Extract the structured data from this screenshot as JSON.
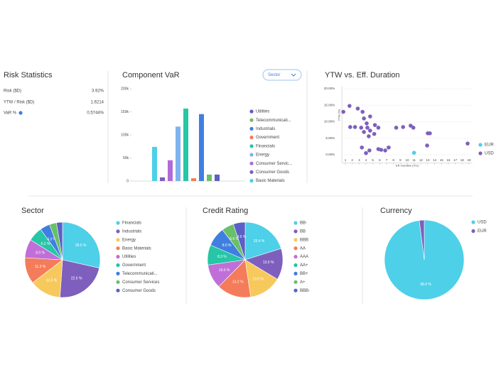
{
  "risk_statistics": {
    "title": "Risk Statistics",
    "rows": [
      {
        "label": "Risk ($D)",
        "value": "3.92%"
      },
      {
        "label": "YTW / Risk ($D)",
        "value": "1.6214"
      },
      {
        "label": "VaR %",
        "value": "0.5744%"
      }
    ]
  },
  "chart_data": [
    {
      "type": "bar",
      "title": "Component VaR",
      "dropdown": "Sector",
      "categories": [
        "Basic Materials",
        "Consumer Goods",
        "Consumer Servic...",
        "Energy",
        "Financials",
        "Government",
        "Industrials",
        "Telecommunicati...",
        "Utilities"
      ],
      "values": [
        74000,
        8000,
        45000,
        118000,
        157000,
        6000,
        145000,
        14000,
        14000
      ],
      "colors": [
        "#4dd0e8",
        "#7e5fbd",
        "#b26ad8",
        "#7fb3f0",
        "#26c6a6",
        "#f47c5a",
        "#3f7fe0",
        "#6abf69",
        "#5b5fc7"
      ],
      "ylim": [
        0,
        200000
      ],
      "yticks": [
        0,
        {
          "value": 50000,
          "label": "50k"
        },
        {
          "value": 100000,
          "label": "100k"
        },
        {
          "value": 150000,
          "label": "150k"
        },
        {
          "value": 200000,
          "label": "200k"
        }
      ]
    },
    {
      "type": "scatter",
      "title": "YTW vs. Eff. Duration",
      "x_label": "Eff. Duration (Yrs)",
      "y_label": "YTW (%)",
      "xlim": [
        0.5,
        19.5
      ],
      "xticks": [
        1,
        2,
        3,
        4,
        5,
        6,
        7,
        8,
        9,
        10,
        11,
        12,
        13,
        14,
        15,
        16,
        17,
        18,
        19
      ],
      "ylim": [
        -2.5,
        20
      ],
      "yticks": [
        {
          "value": 0,
          "label": "0.00%"
        },
        {
          "value": 5,
          "label": "5.00%"
        },
        {
          "value": 10,
          "label": "10.00%"
        },
        {
          "value": 15,
          "label": "15.00%"
        },
        {
          "value": 20,
          "label": "20.00%"
        }
      ],
      "series": [
        {
          "name": "EUR",
          "color": "#4dd0e8",
          "x": [
            11
          ],
          "values": [
            0.6
          ]
        },
        {
          "name": "USD",
          "color": "#7e5fbd",
          "x": [
            0.7,
            1.6,
            1.7,
            2.4,
            2.8,
            3.5,
            3.7,
            3.3,
            3.7,
            4.1,
            4.2,
            4.4,
            4.6,
            5.3,
            4.6,
            5.2,
            5.8,
            3.4,
            4.0,
            4.5,
            5.8,
            6.2,
            6.8,
            7.3,
            8.4,
            9.4,
            10.5,
            10.9,
            13.0,
            13.3,
            12.9,
            18.8
          ],
          "values": [
            13.0,
            14.8,
            8.4,
            8.4,
            14.0,
            13.0,
            11.0,
            8.2,
            6.9,
            9.5,
            8.2,
            5.6,
            7.3,
            9.0,
            11.6,
            6.3,
            8.2,
            2.2,
            0.5,
            1.3,
            1.7,
            1.5,
            1.3,
            2.2,
            8.2,
            8.4,
            8.8,
            8.2,
            6.5,
            6.5,
            2.8,
            3.4
          ]
        }
      ]
    },
    {
      "type": "pie",
      "title": "Sector",
      "categories": [
        "Financials",
        "Industrials",
        "Energy",
        "Basic Materials",
        "Utilities",
        "Government",
        "Telecommunicati...",
        "Consumer Services",
        "Consumer Goods"
      ],
      "values": [
        28.5,
        22.6,
        13.5,
        11.3,
        8.0,
        6.2,
        4.3,
        3.0,
        2.6
      ],
      "value_labels": [
        "28.5 %",
        "22.6 %",
        "13.5 %",
        "11.3 %",
        "8.0 %",
        "6.2 %",
        "4.3 %",
        null,
        null
      ],
      "colors": [
        "#4dd0e8",
        "#7e5fbd",
        "#f7c95c",
        "#f47c5a",
        "#c06fd8",
        "#26c6a6",
        "#3f7fe0",
        "#6abf69",
        "#5b5fc7"
      ]
    },
    {
      "type": "pie",
      "title": "Credit Rating",
      "categories": [
        "BB-",
        "BB",
        "BBB",
        "AA",
        "AAA",
        "AA+",
        "BB+",
        "A+",
        "BBB-"
      ],
      "values": [
        19.4,
        13.0,
        13.5,
        14.2,
        10.0,
        8.3,
        8.0,
        5.0,
        4.9
      ],
      "value_labels": [
        "19.4 %",
        "13.0 %",
        "13.5 %",
        "14.2 %",
        "10.0 %",
        "8.3 %",
        "8.0 %",
        "5.0 %",
        "4.9 %"
      ],
      "colors": [
        "#4dd0e8",
        "#7e5fbd",
        "#f7c95c",
        "#f47c5a",
        "#c06fd8",
        "#26c6a6",
        "#3f7fe0",
        "#6abf69",
        "#5b5fc7"
      ]
    },
    {
      "type": "pie",
      "title": "Currency",
      "categories": [
        "USD",
        "EUR"
      ],
      "values": [
        98.0,
        2.0
      ],
      "value_labels": [
        "98.0 %",
        null
      ],
      "colors": [
        "#4dd0e8",
        "#7e5fbd"
      ]
    }
  ]
}
